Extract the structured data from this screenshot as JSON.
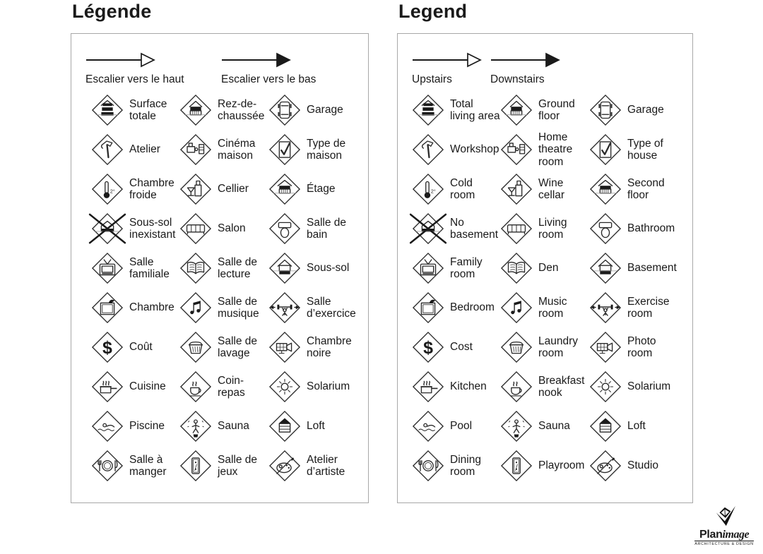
{
  "panels": [
    {
      "title": "Légende",
      "arrows": [
        {
          "label": "Escalier vers le haut",
          "style": "hollow"
        },
        {
          "label": "Escalier vers le bas",
          "style": "filled"
        }
      ],
      "items": [
        {
          "icon": "total-living-area",
          "label": "Surface totale"
        },
        {
          "icon": "ground-floor",
          "label": "Rez-de-chaussée"
        },
        {
          "icon": "garage",
          "label": "Garage"
        },
        {
          "icon": "workshop",
          "label": "Atelier"
        },
        {
          "icon": "home-theatre",
          "label": "Cinéma maison"
        },
        {
          "icon": "type-of-house",
          "label": "Type de maison"
        },
        {
          "icon": "cold-room",
          "label": "Chambre froide"
        },
        {
          "icon": "wine-cellar",
          "label": "Cellier"
        },
        {
          "icon": "second-floor",
          "label": "Étage"
        },
        {
          "icon": "no-basement",
          "label": "Sous-sol inexistant"
        },
        {
          "icon": "living-room",
          "label": "Salon"
        },
        {
          "icon": "bathroom",
          "label": "Salle de bain"
        },
        {
          "icon": "family-room",
          "label": "Salle familiale"
        },
        {
          "icon": "den",
          "label": "Salle de lecture"
        },
        {
          "icon": "basement",
          "label": "Sous-sol"
        },
        {
          "icon": "bedroom",
          "label": "Chambre"
        },
        {
          "icon": "music-room",
          "label": "Salle de musique"
        },
        {
          "icon": "exercise-room",
          "label": "Salle d’exercice"
        },
        {
          "icon": "cost",
          "label": "Coût"
        },
        {
          "icon": "laundry-room",
          "label": "Salle de lavage"
        },
        {
          "icon": "photo-room",
          "label": "Chambre noire"
        },
        {
          "icon": "kitchen",
          "label": "Cuisine"
        },
        {
          "icon": "breakfast-nook",
          "label": "Coin-repas"
        },
        {
          "icon": "solarium",
          "label": "Solarium"
        },
        {
          "icon": "pool",
          "label": "Piscine"
        },
        {
          "icon": "sauna",
          "label": "Sauna"
        },
        {
          "icon": "loft",
          "label": "Loft"
        },
        {
          "icon": "dining-room",
          "label": "Salle à manger"
        },
        {
          "icon": "playroom",
          "label": "Salle de jeux"
        },
        {
          "icon": "studio",
          "label": "Atelier d’artiste"
        }
      ]
    },
    {
      "title": "Legend",
      "arrows": [
        {
          "label": "Upstairs",
          "style": "hollow"
        },
        {
          "label": "Downstairs",
          "style": "filled"
        }
      ],
      "items": [
        {
          "icon": "total-living-area",
          "label": "Total living area"
        },
        {
          "icon": "ground-floor",
          "label": "Ground floor"
        },
        {
          "icon": "garage",
          "label": "Garage"
        },
        {
          "icon": "workshop",
          "label": "Workshop"
        },
        {
          "icon": "home-theatre",
          "label": "Home theatre room"
        },
        {
          "icon": "type-of-house",
          "label": "Type of house"
        },
        {
          "icon": "cold-room",
          "label": "Cold room"
        },
        {
          "icon": "wine-cellar",
          "label": "Wine cellar"
        },
        {
          "icon": "second-floor",
          "label": "Second floor"
        },
        {
          "icon": "no-basement",
          "label": "No basement"
        },
        {
          "icon": "living-room",
          "label": "Living room"
        },
        {
          "icon": "bathroom",
          "label": "Bathroom"
        },
        {
          "icon": "family-room",
          "label": "Family room"
        },
        {
          "icon": "den",
          "label": "Den"
        },
        {
          "icon": "basement",
          "label": "Basement"
        },
        {
          "icon": "bedroom",
          "label": "Bedroom"
        },
        {
          "icon": "music-room",
          "label": "Music room"
        },
        {
          "icon": "exercise-room",
          "label": "Exercise room"
        },
        {
          "icon": "cost",
          "label": "Cost"
        },
        {
          "icon": "laundry-room",
          "label": "Laundry room"
        },
        {
          "icon": "photo-room",
          "label": "Photo room"
        },
        {
          "icon": "kitchen",
          "label": "Kitchen"
        },
        {
          "icon": "breakfast-nook",
          "label": "Breakfast nook"
        },
        {
          "icon": "solarium",
          "label": "Solarium"
        },
        {
          "icon": "pool",
          "label": "Pool"
        },
        {
          "icon": "sauna",
          "label": "Sauna"
        },
        {
          "icon": "loft",
          "label": "Loft"
        },
        {
          "icon": "dining-room",
          "label": "Dining room"
        },
        {
          "icon": "playroom",
          "label": "Playroom"
        },
        {
          "icon": "studio",
          "label": "Studio"
        }
      ]
    }
  ],
  "logo": {
    "brand_bold": "Plan",
    "brand_italic": "image",
    "tagline": "ARCHITECTURE & DESIGN"
  }
}
